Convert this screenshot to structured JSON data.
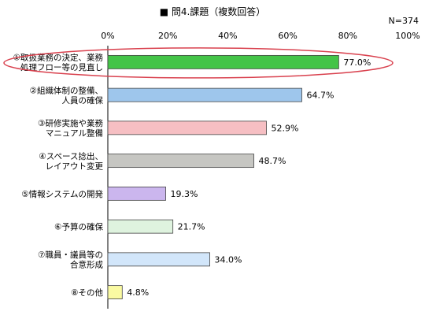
{
  "chart_data": {
    "type": "bar",
    "orientation": "horizontal",
    "title": "■ 問4.課題（複数回答）",
    "note": "N=374",
    "xlim": [
      0,
      100
    ],
    "x_ticks": [
      "0%",
      "20%",
      "40%",
      "60%",
      "80%",
      "100%"
    ],
    "grid": false,
    "categories": [
      [
        "①取扱業務の決定、業務",
        "処理フロー等の見直し"
      ],
      [
        "②組織体制の整備、",
        "人員の確保"
      ],
      [
        "③研修実施や業務",
        "マニュアル整備"
      ],
      [
        "④スペース捻出、",
        "レイアウト変更"
      ],
      [
        "⑤情報システムの開発"
      ],
      [
        "⑥予算の確保"
      ],
      [
        "⑦職員・議員等の",
        "合意形成"
      ],
      [
        "⑧その他"
      ]
    ],
    "values": [
      77.0,
      64.7,
      52.9,
      48.7,
      19.3,
      21.7,
      34.0,
      4.8
    ],
    "value_labels": [
      "77.0%",
      "64.7%",
      "52.9%",
      "48.7%",
      "19.3%",
      "21.7%",
      "34.0%",
      "4.8%"
    ],
    "bar_colors": [
      "#44c448",
      "#9ec6ec",
      "#f6bfc3",
      "#c6c6c2",
      "#cbb6ee",
      "#dff3df",
      "#d2e6fa",
      "#fafaa2"
    ],
    "highlight_color": "#d9414e"
  }
}
